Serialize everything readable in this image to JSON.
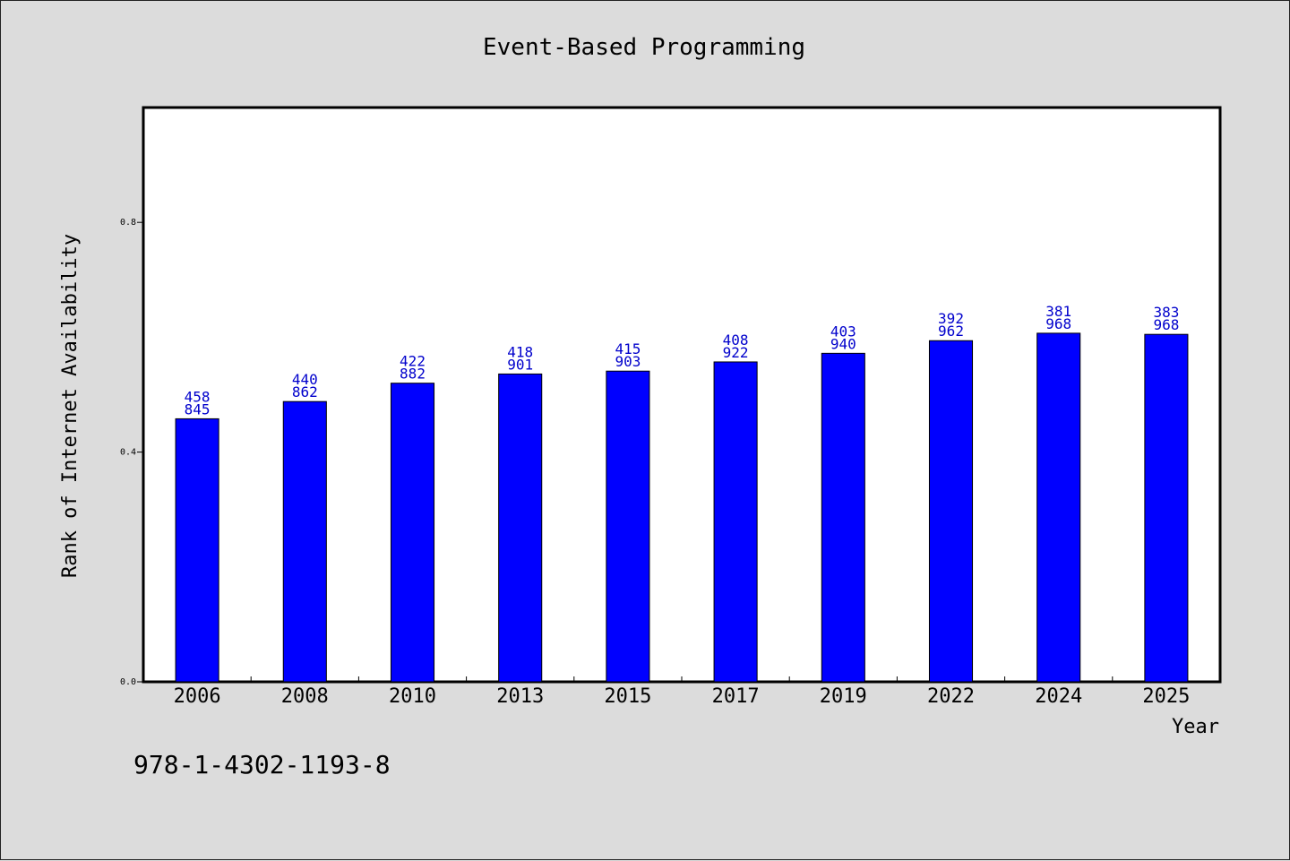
{
  "chart_data": {
    "type": "bar",
    "title": "Event-Based Programming",
    "xlabel": "Year",
    "ylabel": "Rank of Internet Availability",
    "categories": [
      "2006",
      "2008",
      "2010",
      "2013",
      "2015",
      "2017",
      "2019",
      "2022",
      "2024",
      "2025"
    ],
    "values": [
      0.458,
      0.488,
      0.52,
      0.536,
      0.541,
      0.557,
      0.572,
      0.594,
      0.607,
      0.605
    ],
    "bar_labels": [
      [
        "458",
        "845"
      ],
      [
        "440",
        "862"
      ],
      [
        "422",
        "882"
      ],
      [
        "418",
        "901"
      ],
      [
        "415",
        "903"
      ],
      [
        "408",
        "922"
      ],
      [
        "403",
        "940"
      ],
      [
        "392",
        "962"
      ],
      [
        "381",
        "968"
      ],
      [
        "383",
        "968"
      ]
    ],
    "yticks": [
      "0.0",
      "0.4",
      "0.8"
    ],
    "ylim": [
      0,
      1.0
    ],
    "grid": false,
    "legend": false,
    "bar_color": "#0000ff",
    "label_color": "#0000cc"
  },
  "annotation": "978-1-4302-1193-8"
}
